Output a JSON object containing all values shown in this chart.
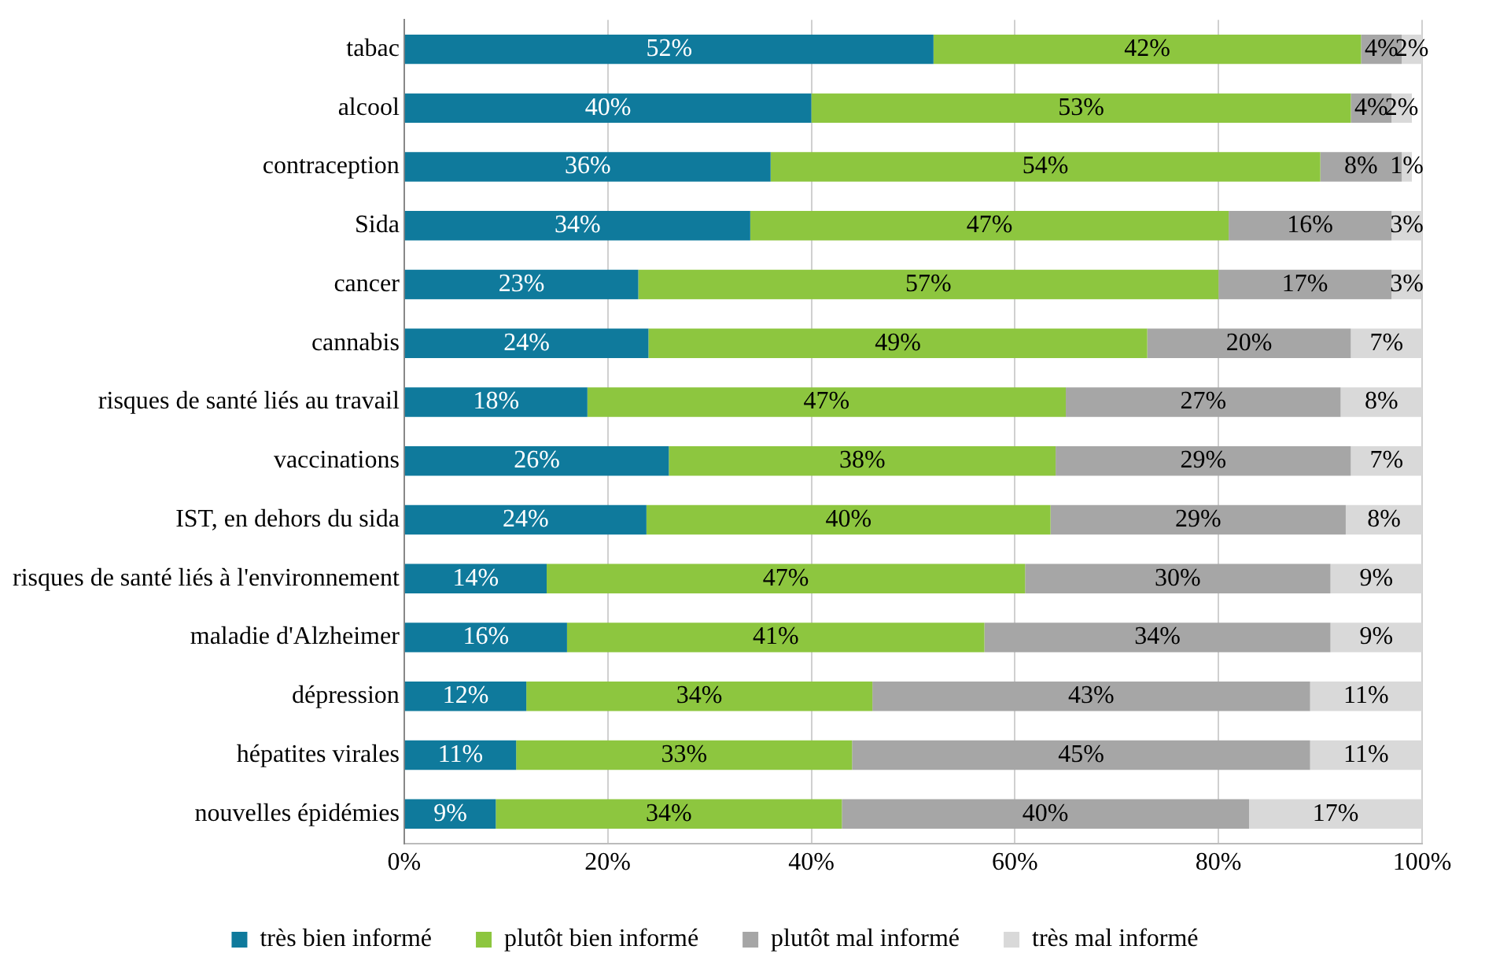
{
  "chart_data": {
    "type": "bar",
    "orientation": "horizontal",
    "stacked": true,
    "grid": "x",
    "legend": "bottom",
    "categories": [
      "tabac",
      "alcool",
      "contraception",
      "Sida",
      "cancer",
      "cannabis",
      "risques de santé liés au travail",
      "vaccinations",
      "IST, en dehors du sida",
      "risques de santé liés à l'environnement",
      "maladie d'Alzheimer",
      "dépression",
      "hépatites virales",
      "nouvelles épidémies"
    ],
    "xlim": [
      0,
      100
    ],
    "xticks": [
      {
        "value": 0,
        "label": "0%"
      },
      {
        "value": 20,
        "label": "20%"
      },
      {
        "value": 40,
        "label": "40%"
      },
      {
        "value": 60,
        "label": "60%"
      },
      {
        "value": 80,
        "label": "80%"
      },
      {
        "value": 100,
        "label": "100%"
      }
    ],
    "series": [
      {
        "name": "très bien informé",
        "color": "#0f7a9c",
        "values": [
          52,
          40,
          36,
          34,
          23,
          24,
          18,
          26,
          23.8,
          14,
          16,
          12,
          11,
          9
        ],
        "value_labels": [
          "52%",
          "40%",
          "36%",
          "34%",
          "23%",
          "24%",
          "18%",
          "26%",
          "24%",
          "14%",
          "16%",
          "12%",
          "11%",
          "9%"
        ]
      },
      {
        "name": "plutôt bien informé",
        "color": "#8dc63f",
        "values": [
          42,
          53,
          54,
          47,
          57,
          49,
          47,
          38,
          39.7,
          47,
          41,
          34,
          33,
          34
        ],
        "value_labels": [
          "42%",
          "53%",
          "54%",
          "47%",
          "57%",
          "49%",
          "47%",
          "38%",
          "40%",
          "47%",
          "41%",
          "34%",
          "33%",
          "34%"
        ]
      },
      {
        "name": "plutôt mal informé",
        "color": "#a6a6a6",
        "values": [
          4,
          4,
          8,
          16,
          17,
          20,
          27,
          29,
          29,
          30,
          34,
          43,
          45,
          40
        ],
        "value_labels": [
          "4%",
          "4%",
          "8%",
          "16%",
          "17%",
          "20%",
          "27%",
          "29%",
          "29%",
          "30%",
          "34%",
          "43%",
          "45%",
          "40%"
        ]
      },
      {
        "name": "très mal informé",
        "color": "#d9d9d9",
        "values": [
          2,
          2,
          1,
          3,
          3,
          7,
          8,
          7,
          7.5,
          9,
          9,
          11,
          11,
          17
        ],
        "value_labels": [
          "2%",
          "2%",
          "1%",
          "3%",
          "3%",
          "7%",
          "8%",
          "7%",
          "8%",
          "9%",
          "9%",
          "11%",
          "11%",
          "17%"
        ]
      }
    ]
  }
}
